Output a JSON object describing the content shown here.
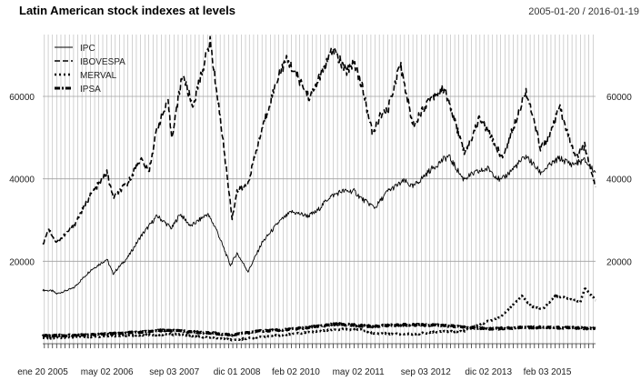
{
  "chart_data": {
    "type": "line",
    "title": "Latin American stock indexes at levels",
    "date_range": "2005-01-20 / 2016-01-19",
    "xlabel": "",
    "ylabel": "",
    "x_range": [
      "2005-01-20",
      "2016-01-19"
    ],
    "ylim": [
      0,
      75000
    ],
    "grid": true,
    "legend_placement": "top-left",
    "x_tick_labels": [
      {
        "date": "2005-01-20",
        "label": "ene 20 2005"
      },
      {
        "date": "2006-05-02",
        "label": "may 02 2006"
      },
      {
        "date": "2007-09-03",
        "label": "sep 03 2007"
      },
      {
        "date": "2008-12-01",
        "label": "dic 01 2008"
      },
      {
        "date": "2010-02-02",
        "label": "feb 02 2010"
      },
      {
        "date": "2011-05-02",
        "label": "may 02 2011"
      },
      {
        "date": "2012-09-03",
        "label": "sep 03 2012"
      },
      {
        "date": "2013-12-02",
        "label": "dic 02 2013"
      },
      {
        "date": "2015-02-03",
        "label": "feb 03 2015"
      }
    ],
    "y_ticks": [
      20000,
      40000,
      60000
    ],
    "series": [
      {
        "name": "IPC",
        "style": "solid",
        "points": [
          [
            "2005-01-20",
            13000
          ],
          [
            "2005-04-01",
            12800
          ],
          [
            "2005-05-01",
            12100
          ],
          [
            "2005-09-01",
            13500
          ],
          [
            "2006-01-01",
            17800
          ],
          [
            "2006-05-01",
            20500
          ],
          [
            "2006-06-15",
            17000
          ],
          [
            "2006-10-01",
            21000
          ],
          [
            "2007-01-01",
            26000
          ],
          [
            "2007-05-01",
            31000
          ],
          [
            "2007-08-15",
            28000
          ],
          [
            "2007-10-15",
            31500
          ],
          [
            "2008-01-01",
            28500
          ],
          [
            "2008-05-01",
            31500
          ],
          [
            "2008-07-01",
            28000
          ],
          [
            "2008-10-15",
            19000
          ],
          [
            "2008-12-01",
            22000
          ],
          [
            "2009-02-20",
            17500
          ],
          [
            "2009-06-01",
            24500
          ],
          [
            "2009-10-01",
            29500
          ],
          [
            "2010-01-01",
            32000
          ],
          [
            "2010-05-01",
            31000
          ],
          [
            "2010-07-01",
            32000
          ],
          [
            "2010-10-01",
            35500
          ],
          [
            "2011-01-01",
            37000
          ],
          [
            "2011-04-01",
            37000
          ],
          [
            "2011-06-01",
            35000
          ],
          [
            "2011-09-01",
            33000
          ],
          [
            "2011-12-01",
            37000
          ],
          [
            "2012-04-01",
            39500
          ],
          [
            "2012-06-01",
            38000
          ],
          [
            "2012-10-01",
            42000
          ],
          [
            "2013-01-01",
            44500
          ],
          [
            "2013-02-15",
            45500
          ],
          [
            "2013-06-01",
            40000
          ],
          [
            "2013-09-01",
            41500
          ],
          [
            "2013-12-01",
            42500
          ],
          [
            "2014-03-01",
            39500
          ],
          [
            "2014-07-01",
            43500
          ],
          [
            "2014-09-01",
            45500
          ],
          [
            "2014-12-15",
            41500
          ],
          [
            "2015-03-01",
            43500
          ],
          [
            "2015-05-01",
            45000
          ],
          [
            "2015-08-01",
            43500
          ],
          [
            "2015-11-01",
            44500
          ],
          [
            "2016-01-19",
            41500
          ]
        ]
      },
      {
        "name": "IBOVESPA",
        "style": "dashed",
        "points": [
          [
            "2005-01-20",
            24000
          ],
          [
            "2005-03-01",
            28000
          ],
          [
            "2005-05-01",
            24500
          ],
          [
            "2005-09-01",
            28500
          ],
          [
            "2006-01-01",
            36000
          ],
          [
            "2006-05-01",
            41500
          ],
          [
            "2006-06-15",
            35500
          ],
          [
            "2006-10-01",
            39000
          ],
          [
            "2007-01-01",
            45000
          ],
          [
            "2007-03-01",
            41500
          ],
          [
            "2007-05-01",
            52500
          ],
          [
            "2007-07-20",
            58500
          ],
          [
            "2007-08-15",
            50000
          ],
          [
            "2007-11-01",
            65500
          ],
          [
            "2008-01-15",
            57500
          ],
          [
            "2008-05-20",
            73500
          ],
          [
            "2008-08-01",
            55000
          ],
          [
            "2008-10-27",
            30500
          ],
          [
            "2008-12-01",
            37000
          ],
          [
            "2009-02-15",
            38500
          ],
          [
            "2009-06-01",
            52000
          ],
          [
            "2009-10-01",
            65500
          ],
          [
            "2009-12-01",
            69000
          ],
          [
            "2010-05-15",
            59500
          ],
          [
            "2010-07-01",
            63000
          ],
          [
            "2010-11-01",
            71500
          ],
          [
            "2011-02-01",
            66000
          ],
          [
            "2011-04-01",
            68500
          ],
          [
            "2011-06-01",
            62000
          ],
          [
            "2011-08-15",
            50500
          ],
          [
            "2011-10-01",
            55000
          ],
          [
            "2011-12-01",
            56500
          ],
          [
            "2012-03-01",
            68000
          ],
          [
            "2012-06-01",
            53000
          ],
          [
            "2012-10-01",
            59500
          ],
          [
            "2013-01-15",
            62000
          ],
          [
            "2013-06-15",
            46000
          ],
          [
            "2013-10-01",
            55000
          ],
          [
            "2014-03-15",
            45000
          ],
          [
            "2014-09-01",
            61500
          ],
          [
            "2014-12-15",
            47500
          ],
          [
            "2015-03-01",
            51000
          ],
          [
            "2015-05-01",
            57500
          ],
          [
            "2015-08-25",
            45000
          ],
          [
            "2015-11-01",
            48000
          ],
          [
            "2016-01-19",
            38000
          ]
        ]
      },
      {
        "name": "MERVAL",
        "style": "dotted",
        "points": [
          [
            "2005-01-20",
            1300
          ],
          [
            "2006-01-01",
            1700
          ],
          [
            "2007-01-01",
            2100
          ],
          [
            "2007-10-01",
            2300
          ],
          [
            "2008-10-27",
            900
          ],
          [
            "2009-06-01",
            1700
          ],
          [
            "2010-01-01",
            2300
          ],
          [
            "2010-12-01",
            3500
          ],
          [
            "2011-06-01",
            3300
          ],
          [
            "2011-09-01",
            2500
          ],
          [
            "2012-06-01",
            2300
          ],
          [
            "2013-01-01",
            3000
          ],
          [
            "2013-06-01",
            3000
          ],
          [
            "2013-12-01",
            5500
          ],
          [
            "2014-03-01",
            6500
          ],
          [
            "2014-08-01",
            11500
          ],
          [
            "2014-10-15",
            9000
          ],
          [
            "2015-01-01",
            8500
          ],
          [
            "2015-04-01",
            11500
          ],
          [
            "2015-07-01",
            11000
          ],
          [
            "2015-10-01",
            10000
          ],
          [
            "2015-11-01",
            13500
          ],
          [
            "2016-01-19",
            10500
          ]
        ]
      },
      {
        "name": "IPSA",
        "style": "dash-dot",
        "points": [
          [
            "2005-01-20",
            1900
          ],
          [
            "2006-01-01",
            2100
          ],
          [
            "2007-01-01",
            2800
          ],
          [
            "2007-07-01",
            3300
          ],
          [
            "2008-01-01",
            2900
          ],
          [
            "2008-10-27",
            2200
          ],
          [
            "2009-06-01",
            3100
          ],
          [
            "2010-01-01",
            3500
          ],
          [
            "2010-12-01",
            4800
          ],
          [
            "2011-08-01",
            4200
          ],
          [
            "2012-04-01",
            4600
          ],
          [
            "2013-01-01",
            4500
          ],
          [
            "2013-06-01",
            4000
          ],
          [
            "2014-01-01",
            3600
          ],
          [
            "2014-09-01",
            4000
          ],
          [
            "2015-06-01",
            3900
          ],
          [
            "2016-01-19",
            3700
          ]
        ]
      }
    ]
  }
}
